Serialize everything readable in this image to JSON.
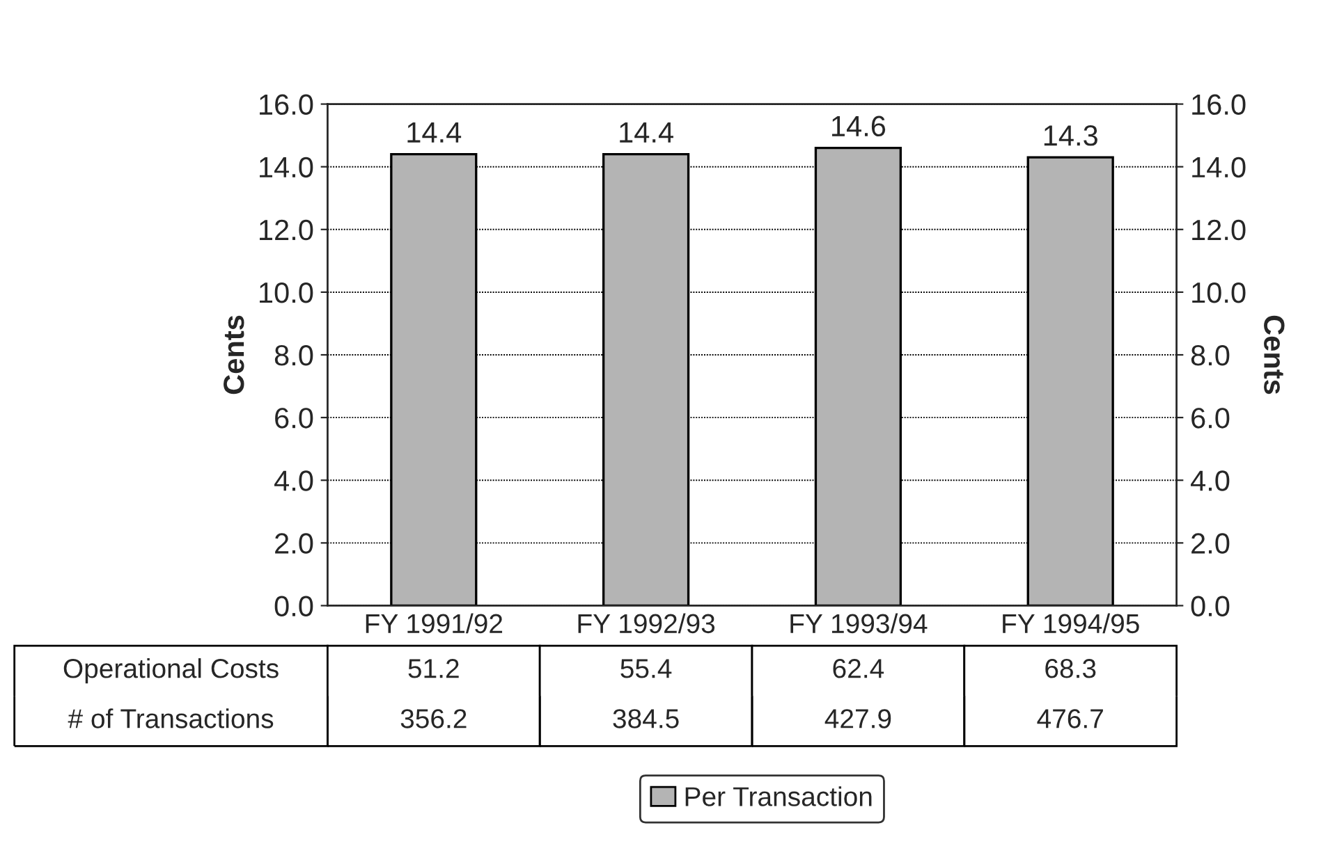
{
  "chart_data": {
    "type": "bar",
    "categories": [
      "FY 1991/92",
      "FY 1992/93",
      "FY 1993/94",
      "FY 1994/95"
    ],
    "series": [
      {
        "name": "Per Transaction",
        "color": "#b4b4b4",
        "values": [
          14.4,
          14.4,
          14.6,
          14.3
        ]
      }
    ],
    "ylabel": "Cents",
    "y2label": "Cents",
    "ylim": [
      0,
      16
    ],
    "yticks": [
      {
        "value": 0,
        "label": "0.0"
      },
      {
        "value": 2,
        "label": "2.0"
      },
      {
        "value": 4,
        "label": "4.0"
      },
      {
        "value": 6,
        "label": "6.0"
      },
      {
        "value": 8,
        "label": "8.0"
      },
      {
        "value": 10,
        "label": "10.0"
      },
      {
        "value": 12,
        "label": "12.0"
      },
      {
        "value": 14,
        "label": "14.0"
      },
      {
        "value": 16,
        "label": "16.0"
      }
    ],
    "y2lim": [
      0,
      16
    ],
    "y2ticks": [
      {
        "value": 0,
        "label": "0.0"
      },
      {
        "value": 2,
        "label": "2.0"
      },
      {
        "value": 4,
        "label": "4.0"
      },
      {
        "value": 6,
        "label": "6.0"
      },
      {
        "value": 8,
        "label": "8.0"
      },
      {
        "value": 10,
        "label": "10.0"
      },
      {
        "value": 12,
        "label": "12.0"
      },
      {
        "value": 14,
        "label": "14.0"
      },
      {
        "value": 16,
        "label": "16.0"
      }
    ],
    "data_labels": true,
    "grid": "y",
    "legend": "bottom",
    "annotations": [
      "Operational Costs",
      "51.2",
      "55.4",
      "62.4",
      "68.3",
      "# of Transactions",
      "356.2",
      "384.5",
      "427.9",
      "476.7"
    ]
  }
}
